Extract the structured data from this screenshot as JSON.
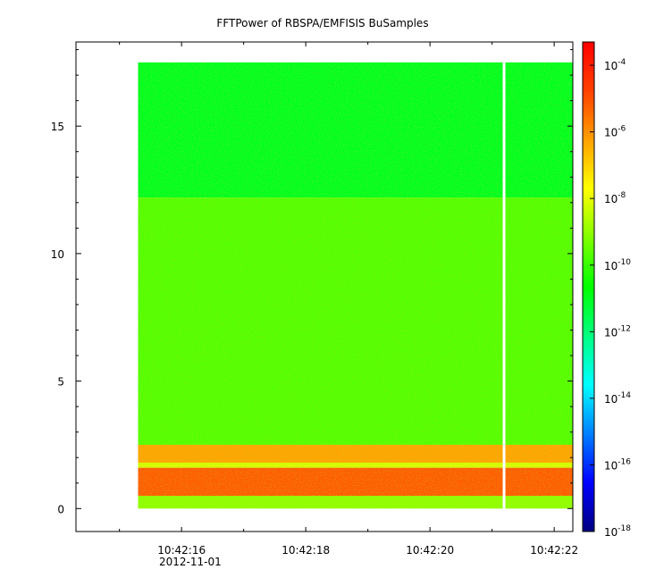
{
  "chart_data": {
    "type": "heatmap",
    "title": "FFTPower of RBSPA/EMFISIS  BuSamples",
    "xlabel": "",
    "ylabel": "",
    "x_tick_labels": [
      "10:42:16",
      "10:42:18",
      "10:42:20",
      "10:42:22"
    ],
    "x_tick_seconds": [
      16,
      18,
      20,
      22
    ],
    "x_date_label": "2012-11-01",
    "x_range_seconds": [
      14.3,
      22.3
    ],
    "data_time_range_seconds": [
      15.3,
      22.3
    ],
    "data_gap_seconds": 21.2,
    "y_tick_labels": [
      "0",
      "5",
      "10",
      "15"
    ],
    "y_ticks": [
      0,
      5,
      10,
      15
    ],
    "ylim": [
      -0.9,
      18.3
    ],
    "data_freq_range": [
      0,
      17.5
    ],
    "colorbar": {
      "scale": "log",
      "range_exponents": [
        -18,
        -3.3
      ],
      "tick_base": "10",
      "tick_exponents": [
        "-18",
        "-16",
        "-14",
        "-12",
        "-10",
        "-8",
        "-6",
        "-4"
      ],
      "tick_values": [
        -18,
        -16,
        -14,
        -12,
        -10,
        -8,
        -6,
        -4
      ],
      "colormap": [
        "#000080",
        "#0000ff",
        "#0080ff",
        "#00ffff",
        "#00ff80",
        "#00ff00",
        "#80ff00",
        "#ffff00",
        "#ffa000",
        "#ff4000",
        "#ff0000"
      ]
    },
    "bands": [
      {
        "freq": [
          12.2,
          17.5
        ],
        "log10_power": -11.0
      },
      {
        "freq": [
          2.5,
          12.2
        ],
        "log10_power": -9.7
      },
      {
        "freq": [
          1.8,
          2.5
        ],
        "log10_power": -6.3
      },
      {
        "freq": [
          1.6,
          1.8
        ],
        "log10_power": -8.2
      },
      {
        "freq": [
          0.5,
          1.6
        ],
        "log10_power": -5.2
      },
      {
        "freq": [
          0.0,
          0.5
        ],
        "log10_power": -9.0
      }
    ]
  }
}
